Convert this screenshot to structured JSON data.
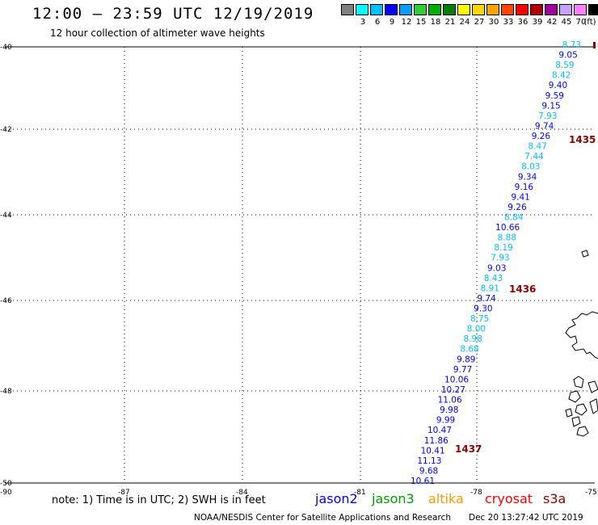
{
  "header": {
    "title": "12:00 – 23:59 UTC 12/19/2019",
    "subtitle": "12 hour collection of altimeter wave heights"
  },
  "color_scale": {
    "unit_label": "(ft)",
    "swatches": [
      {
        "color": "#808080",
        "label": ""
      },
      {
        "color": "#00ffff",
        "label": "3"
      },
      {
        "color": "#00bfff",
        "label": "6"
      },
      {
        "color": "#0000ff",
        "label": "9"
      },
      {
        "color": "#00a0ff",
        "label": "12"
      },
      {
        "color": "#32cd32",
        "label": "15"
      },
      {
        "color": "#00b000",
        "label": "18"
      },
      {
        "color": "#008000",
        "label": "21"
      },
      {
        "color": "#ffff00",
        "label": "24"
      },
      {
        "color": "#ffd700",
        "label": "27"
      },
      {
        "color": "#ffa500",
        "label": "30"
      },
      {
        "color": "#ff4500",
        "label": "33"
      },
      {
        "color": "#ff0000",
        "label": "36"
      },
      {
        "color": "#b00000",
        "label": "39"
      },
      {
        "color": "#a000a0",
        "label": "42"
      },
      {
        "color": "#c8a0ff",
        "label": "45"
      },
      {
        "color": "#ff80ff",
        "label": "70"
      },
      {
        "color": "#000000",
        "label": ""
      }
    ]
  },
  "map": {
    "lat_labels": [
      "-40",
      "-42",
      "-44",
      "-46",
      "-48",
      "-50"
    ],
    "lon_labels": [
      "-90",
      "-87",
      "-84",
      "-81",
      "-78",
      "-75"
    ],
    "time_labels": [
      "1435",
      "1436",
      "1437"
    ],
    "wave_heights": [
      {
        "v": "8.73",
        "c": "#00bfff"
      },
      {
        "v": "9.05",
        "c": "#0000ff"
      },
      {
        "v": "8.59",
        "c": "#00bfff"
      },
      {
        "v": "8.42",
        "c": "#00bfff"
      },
      {
        "v": "9.40",
        "c": "#0000ff"
      },
      {
        "v": "9.59",
        "c": "#0000ff"
      },
      {
        "v": "9.15",
        "c": "#0000ff"
      },
      {
        "v": "7.93",
        "c": "#00bfff"
      },
      {
        "v": "9.74",
        "c": "#0000ff"
      },
      {
        "v": "9.26",
        "c": "#0000ff"
      },
      {
        "v": "8.47",
        "c": "#00bfff"
      },
      {
        "v": "7.44",
        "c": "#00bfff"
      },
      {
        "v": "8.03",
        "c": "#00bfff"
      },
      {
        "v": "9.34",
        "c": "#0000ff"
      },
      {
        "v": "9.16",
        "c": "#0000ff"
      },
      {
        "v": "9.41",
        "c": "#0000ff"
      },
      {
        "v": "9.26",
        "c": "#0000ff"
      },
      {
        "v": "8.84",
        "c": "#00bfff"
      },
      {
        "v": "10.66",
        "c": "#0000ff"
      },
      {
        "v": "8.88",
        "c": "#00bfff"
      },
      {
        "v": "8.19",
        "c": "#00bfff"
      },
      {
        "v": "7.93",
        "c": "#00bfff"
      },
      {
        "v": "9.03",
        "c": "#0000ff"
      },
      {
        "v": "8.43",
        "c": "#00bfff"
      },
      {
        "v": "8.91",
        "c": "#00bfff"
      },
      {
        "v": "9.74",
        "c": "#0000ff"
      },
      {
        "v": "9.30",
        "c": "#0000ff"
      },
      {
        "v": "8.75",
        "c": "#00bfff"
      },
      {
        "v": "8.00",
        "c": "#00bfff"
      },
      {
        "v": "8.98",
        "c": "#00bfff"
      },
      {
        "v": "8.68",
        "c": "#00bfff"
      },
      {
        "v": "9.89",
        "c": "#0000ff"
      },
      {
        "v": "9.77",
        "c": "#0000ff"
      },
      {
        "v": "10.06",
        "c": "#0000ff"
      },
      {
        "v": "10.27",
        "c": "#0000ff"
      },
      {
        "v": "11.06",
        "c": "#0000ff"
      },
      {
        "v": "9.98",
        "c": "#0000ff"
      },
      {
        "v": "9.99",
        "c": "#0000ff"
      },
      {
        "v": "10.47",
        "c": "#0000ff"
      },
      {
        "v": "11.86",
        "c": "#0000ff"
      },
      {
        "v": "10.41",
        "c": "#0000ff"
      },
      {
        "v": "11.13",
        "c": "#0000ff"
      },
      {
        "v": "9.68",
        "c": "#0000ff"
      },
      {
        "v": "10.61",
        "c": "#0000ff"
      }
    ]
  },
  "legend": {
    "note": "note: 1) Time is in UTC; 2) SWH is in feet",
    "satellites": [
      {
        "name": "jason2",
        "color": "#0000ff"
      },
      {
        "name": "jason3",
        "color": "#00a000"
      },
      {
        "name": "altika",
        "color": "#ff9900"
      },
      {
        "name": "cryosat",
        "color": "#ff0000"
      },
      {
        "name": "s3a",
        "color": "#8b0000"
      }
    ]
  },
  "footer": {
    "credit": "NOAA/NESDIS Center for Satellite Applications and Research",
    "timestamp": "Dec 20 13:27:42 UTC 2019"
  }
}
